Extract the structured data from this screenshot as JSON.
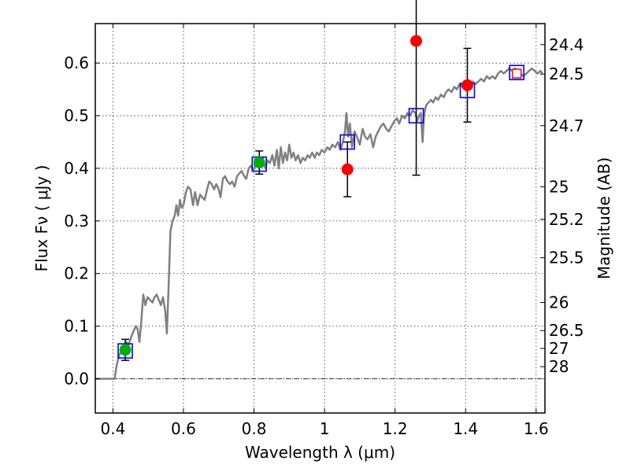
{
  "chart_data": {
    "type": "scatter",
    "xlabel": "Wavelength  λ (μm)",
    "ylabel": "Flux  Fν  ( μJy )",
    "ylabel_right": "Magnitude (AB)",
    "xlim": [
      0.35,
      1.625
    ],
    "ylim": [
      -0.065,
      0.675
    ],
    "grid": true,
    "x_ticks": [
      0.4,
      0.6,
      0.8,
      1.0,
      1.2,
      1.4,
      1.6
    ],
    "x_tick_labels": [
      "0.4",
      "0.6",
      "0.8",
      "1",
      "1.2",
      "1.4",
      "1.6"
    ],
    "y_ticks": [
      0.0,
      0.1,
      0.2,
      0.3,
      0.4,
      0.5,
      0.6
    ],
    "y_tick_labels": [
      "0.0",
      "0.1",
      "0.2",
      "0.3",
      "0.4",
      "0.5",
      "0.6"
    ],
    "right_ticks": [
      {
        "label": "24.4",
        "flux": 0.635
      },
      {
        "label": "24.5",
        "flux": 0.579
      },
      {
        "label": "24.7",
        "flux": 0.481
      },
      {
        "label": "25",
        "flux": 0.365
      },
      {
        "label": "25.2",
        "flux": 0.303
      },
      {
        "label": "25.5",
        "flux": 0.23
      },
      {
        "label": "26",
        "flux": 0.145
      },
      {
        "label": "26.5",
        "flux": 0.0916
      },
      {
        "label": "27",
        "flux": 0.0578
      },
      {
        "label": "28",
        "flux": 0.023
      }
    ],
    "colors": {
      "model": "#808080",
      "green": "#00b000",
      "red": "#ff0000",
      "square": "#0000ff",
      "errorbar": "#000000",
      "zero_line": "#000000"
    },
    "series": [
      {
        "kind": "model",
        "points": [
          [
            0.35,
            0.0
          ],
          [
            0.395,
            0.0
          ],
          [
            0.405,
            0.0
          ],
          [
            0.408,
            0.015
          ],
          [
            0.412,
            0.03
          ],
          [
            0.418,
            0.045
          ],
          [
            0.425,
            0.055
          ],
          [
            0.432,
            0.065
          ],
          [
            0.438,
            0.07
          ],
          [
            0.445,
            0.065
          ],
          [
            0.452,
            0.08
          ],
          [
            0.458,
            0.09
          ],
          [
            0.465,
            0.1
          ],
          [
            0.47,
            0.095
          ],
          [
            0.475,
            0.07
          ],
          [
            0.48,
            0.105
          ],
          [
            0.486,
            0.16
          ],
          [
            0.492,
            0.14
          ],
          [
            0.498,
            0.155
          ],
          [
            0.505,
            0.15
          ],
          [
            0.512,
            0.145
          ],
          [
            0.518,
            0.155
          ],
          [
            0.524,
            0.16
          ],
          [
            0.53,
            0.15
          ],
          [
            0.536,
            0.14
          ],
          [
            0.542,
            0.155
          ],
          [
            0.548,
            0.13
          ],
          [
            0.553,
            0.086
          ],
          [
            0.558,
            0.18
          ],
          [
            0.563,
            0.28
          ],
          [
            0.569,
            0.3
          ],
          [
            0.575,
            0.31
          ],
          [
            0.58,
            0.33
          ],
          [
            0.585,
            0.31
          ],
          [
            0.59,
            0.34
          ],
          [
            0.595,
            0.325
          ],
          [
            0.6,
            0.33
          ],
          [
            0.607,
            0.355
          ],
          [
            0.613,
            0.365
          ],
          [
            0.62,
            0.36
          ],
          [
            0.627,
            0.33
          ],
          [
            0.633,
            0.355
          ],
          [
            0.64,
            0.33
          ],
          [
            0.647,
            0.35
          ],
          [
            0.653,
            0.345
          ],
          [
            0.66,
            0.34
          ],
          [
            0.667,
            0.36
          ],
          [
            0.673,
            0.375
          ],
          [
            0.68,
            0.37
          ],
          [
            0.687,
            0.36
          ],
          [
            0.693,
            0.37
          ],
          [
            0.7,
            0.36
          ],
          [
            0.705,
            0.345
          ],
          [
            0.712,
            0.38
          ],
          [
            0.718,
            0.385
          ],
          [
            0.725,
            0.375
          ],
          [
            0.732,
            0.37
          ],
          [
            0.738,
            0.375
          ],
          [
            0.745,
            0.365
          ],
          [
            0.752,
            0.385
          ],
          [
            0.758,
            0.39
          ],
          [
            0.765,
            0.395
          ],
          [
            0.772,
            0.385
          ],
          [
            0.778,
            0.38
          ],
          [
            0.785,
            0.4
          ],
          [
            0.792,
            0.405
          ],
          [
            0.798,
            0.395
          ],
          [
            0.805,
            0.41
          ],
          [
            0.812,
            0.415
          ],
          [
            0.818,
            0.41
          ],
          [
            0.825,
            0.42
          ],
          [
            0.832,
            0.4
          ],
          [
            0.838,
            0.415
          ],
          [
            0.845,
            0.41
          ],
          [
            0.852,
            0.425
          ],
          [
            0.858,
            0.405
          ],
          [
            0.865,
            0.435
          ],
          [
            0.87,
            0.4
          ],
          [
            0.876,
            0.44
          ],
          [
            0.882,
            0.41
          ],
          [
            0.888,
            0.43
          ],
          [
            0.894,
            0.415
          ],
          [
            0.9,
            0.445
          ],
          [
            0.906,
            0.42
          ],
          [
            0.912,
            0.43
          ],
          [
            0.918,
            0.415
          ],
          [
            0.925,
            0.425
          ],
          [
            0.932,
            0.41
          ],
          [
            0.938,
            0.42
          ],
          [
            0.945,
            0.415
          ],
          [
            0.952,
            0.425
          ],
          [
            0.958,
            0.42
          ],
          [
            0.965,
            0.43
          ],
          [
            0.972,
            0.42
          ],
          [
            0.978,
            0.43
          ],
          [
            0.985,
            0.425
          ],
          [
            0.992,
            0.435
          ],
          [
            1.0,
            0.43
          ],
          [
            1.008,
            0.44
          ],
          [
            1.015,
            0.435
          ],
          [
            1.022,
            0.445
          ],
          [
            1.03,
            0.44
          ],
          [
            1.038,
            0.45
          ],
          [
            1.045,
            0.435
          ],
          [
            1.052,
            0.45
          ],
          [
            1.058,
            0.47
          ],
          [
            1.062,
            0.505
          ],
          [
            1.067,
            0.46
          ],
          [
            1.072,
            0.485
          ],
          [
            1.078,
            0.44
          ],
          [
            1.085,
            0.47
          ],
          [
            1.092,
            0.46
          ],
          [
            1.1,
            0.445
          ],
          [
            1.108,
            0.475
          ],
          [
            1.115,
            0.46
          ],
          [
            1.122,
            0.455
          ],
          [
            1.13,
            0.465
          ],
          [
            1.138,
            0.44
          ],
          [
            1.145,
            0.46
          ],
          [
            1.152,
            0.47
          ],
          [
            1.16,
            0.48
          ],
          [
            1.167,
            0.485
          ],
          [
            1.175,
            0.475
          ],
          [
            1.182,
            0.47
          ],
          [
            1.19,
            0.48
          ],
          [
            1.198,
            0.49
          ],
          [
            1.205,
            0.495
          ],
          [
            1.212,
            0.485
          ],
          [
            1.22,
            0.5
          ],
          [
            1.228,
            0.495
          ],
          [
            1.235,
            0.505
          ],
          [
            1.242,
            0.5
          ],
          [
            1.25,
            0.51
          ],
          [
            1.258,
            0.505
          ],
          [
            1.263,
            0.49
          ],
          [
            1.268,
            0.5
          ],
          [
            1.273,
            0.505
          ],
          [
            1.278,
            0.45
          ],
          [
            1.282,
            0.5
          ],
          [
            1.288,
            0.52
          ],
          [
            1.295,
            0.525
          ],
          [
            1.302,
            0.53
          ],
          [
            1.308,
            0.525
          ],
          [
            1.315,
            0.535
          ],
          [
            1.322,
            0.53
          ],
          [
            1.33,
            0.54
          ],
          [
            1.338,
            0.535
          ],
          [
            1.345,
            0.545
          ],
          [
            1.352,
            0.55
          ],
          [
            1.36,
            0.545
          ],
          [
            1.368,
            0.555
          ],
          [
            1.375,
            0.55
          ],
          [
            1.383,
            0.56
          ],
          [
            1.39,
            0.555
          ],
          [
            1.398,
            0.56
          ],
          [
            1.405,
            0.555
          ],
          [
            1.412,
            0.56
          ],
          [
            1.42,
            0.565
          ],
          [
            1.428,
            0.56
          ],
          [
            1.436,
            0.565
          ],
          [
            1.444,
            0.57
          ],
          [
            1.452,
            0.565
          ],
          [
            1.46,
            0.575
          ],
          [
            1.468,
            0.57
          ],
          [
            1.476,
            0.575
          ],
          [
            1.484,
            0.57
          ],
          [
            1.492,
            0.58
          ],
          [
            1.5,
            0.585
          ],
          [
            1.508,
            0.58
          ],
          [
            1.516,
            0.585
          ],
          [
            1.524,
            0.59
          ],
          [
            1.532,
            0.585
          ],
          [
            1.54,
            0.59
          ],
          [
            1.548,
            0.585
          ],
          [
            1.556,
            0.58
          ],
          [
            1.564,
            0.575
          ],
          [
            1.572,
            0.58
          ],
          [
            1.58,
            0.585
          ],
          [
            1.588,
            0.59
          ],
          [
            1.596,
            0.585
          ],
          [
            1.604,
            0.58
          ],
          [
            1.612,
            0.585
          ],
          [
            1.618,
            0.58
          ]
        ]
      },
      {
        "kind": "green-circle",
        "points": [
          {
            "x": 0.435,
            "y": 0.055,
            "err": 0.02
          },
          {
            "x": 0.815,
            "y": 0.411,
            "err": 0.022
          }
        ]
      },
      {
        "kind": "red-circle",
        "points": [
          {
            "x": 1.065,
            "y": 0.398,
            "err": 0.052
          },
          {
            "x": 1.26,
            "y": 0.642,
            "err": 0.255
          },
          {
            "x": 1.405,
            "y": 0.558,
            "err": 0.07
          }
        ]
      },
      {
        "kind": "open-square",
        "points": [
          {
            "x": 0.435,
            "y": 0.053
          },
          {
            "x": 0.815,
            "y": 0.408
          },
          {
            "x": 1.065,
            "y": 0.45
          },
          {
            "x": 1.26,
            "y": 0.5
          },
          {
            "x": 1.405,
            "y": 0.548
          },
          {
            "x": 1.545,
            "y": 0.582
          }
        ]
      },
      {
        "kind": "red-open-square",
        "points": [
          {
            "x": 1.545,
            "y": 0.58
          }
        ]
      }
    ]
  }
}
